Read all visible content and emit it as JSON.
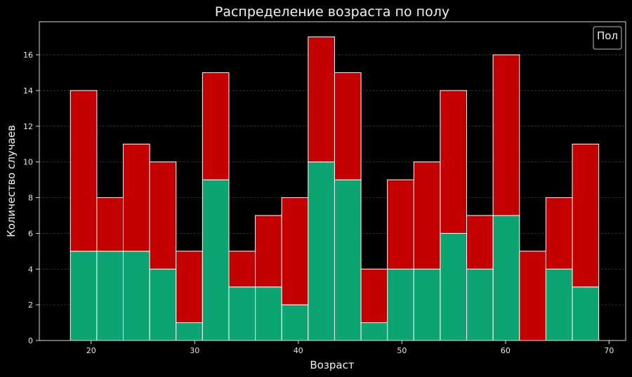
{
  "chart_data": {
    "type": "bar",
    "stacked": true,
    "title": "Распределение возраста по полу",
    "xlabel": "Возраст",
    "ylabel": "Количество случаев",
    "xlim": [
      15,
      71.6
    ],
    "ylim": [
      0,
      17.85
    ],
    "x_ticks": [
      20,
      30,
      40,
      50,
      60,
      70
    ],
    "y_ticks": [
      0,
      2,
      4,
      6,
      8,
      10,
      12,
      14,
      16
    ],
    "bin_edges": [
      18,
      20.55,
      23.1,
      25.65,
      28.2,
      30.75,
      33.3,
      35.85,
      38.4,
      40.95,
      43.5,
      46.05,
      48.6,
      51.15,
      53.7,
      56.25,
      58.8,
      61.35,
      63.9,
      66.45,
      69
    ],
    "series": [
      {
        "values": [
          5,
          5,
          5,
          4,
          1,
          9,
          3,
          3,
          2,
          10,
          9,
          1,
          4,
          4,
          6,
          4,
          7,
          0,
          4,
          3
        ],
        "color": "#0ca472"
      },
      {
        "values": [
          9,
          3,
          6,
          6,
          4,
          6,
          2,
          4,
          6,
          7,
          6,
          3,
          5,
          6,
          8,
          3,
          9,
          5,
          4,
          8
        ],
        "color": "#c50000"
      }
    ],
    "totals": [
      14,
      8,
      11,
      10,
      5,
      15,
      5,
      7,
      8,
      17,
      15,
      4,
      9,
      10,
      14,
      7,
      16,
      5,
      8,
      11
    ],
    "legend": {
      "title": "Пол",
      "position": "top-right"
    },
    "grid": true,
    "background": "#000000",
    "axis_color": "#d9d9d9",
    "grid_color": "#3a3a3a",
    "bar_edge_color": "#ffffff"
  }
}
